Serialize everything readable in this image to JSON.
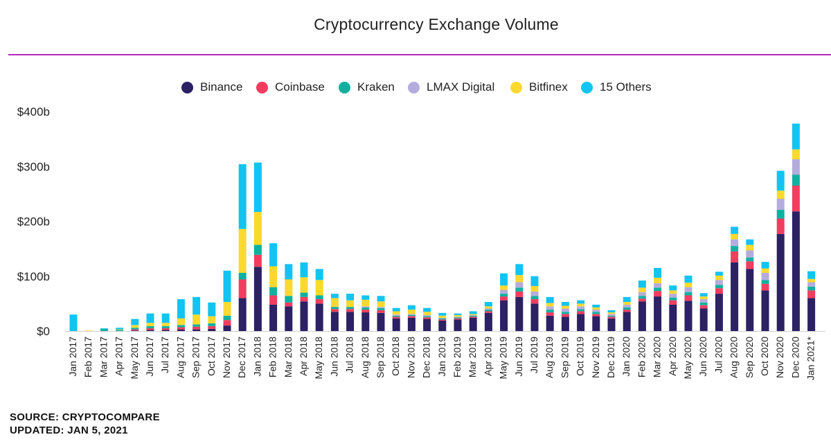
{
  "chart_data": {
    "type": "bar",
    "stacked": true,
    "title": "Cryptocurrency Exchange Volume",
    "ylim": [
      0,
      400
    ],
    "yticks": [
      "$0",
      "$100b",
      "$200b",
      "$300b",
      "$400b"
    ],
    "ytick_values": [
      0,
      100,
      200,
      300,
      400
    ],
    "grid": false,
    "legend_position": "top",
    "categories": [
      "Jan 2017",
      "Feb 2017",
      "Mar 2017",
      "Apr 2017",
      "May 2017",
      "Jun 2017",
      "Jul 2017",
      "Aug 2017",
      "Sep 2017",
      "Oct 2017",
      "Nov 2017",
      "Dec 2017",
      "Jan 2018",
      "Feb 2018",
      "Mar 2018",
      "Apr 2018",
      "May 2018",
      "Jun 2018",
      "Jul 2018",
      "Aug 2018",
      "Sep 2018",
      "Oct 2018",
      "Nov 2018",
      "Dec 2018",
      "Jan 2019",
      "Feb 2019",
      "Mar 2019",
      "Apr 2019",
      "May 2019",
      "Jun 2019",
      "Jul 2019",
      "Aug 2019",
      "Sep 2019",
      "Oct 2019",
      "Nov 2019",
      "Dec 2019",
      "Jan 2020",
      "Feb 2020",
      "Mar 2020",
      "Apr 2020",
      "May 2020",
      "Jun 2020",
      "Jul 2020",
      "Aug 2020",
      "Sep 2020",
      "Oct 2020",
      "Nov 2020",
      "Dec 2020",
      "Jan 2021*"
    ],
    "series": [
      {
        "name": "Binance",
        "color": "#2b2163",
        "values": [
          0,
          0,
          0,
          0,
          1,
          2,
          2,
          3,
          3,
          4,
          10,
          60,
          117,
          48,
          45,
          54,
          50,
          35,
          35,
          34,
          33,
          23,
          24,
          22,
          19,
          21,
          24,
          33,
          56,
          62,
          50,
          28,
          26,
          31,
          27,
          23,
          35,
          54,
          63,
          48,
          55,
          41,
          68,
          125,
          113,
          74,
          177,
          218,
          60
        ]
      },
      {
        "name": "Coinbase",
        "color": "#f23d5f",
        "values": [
          0,
          0,
          0,
          0,
          2,
          3,
          3,
          4,
          5,
          5,
          10,
          34,
          22,
          17,
          7,
          8,
          8,
          5,
          5,
          5,
          5,
          3,
          3,
          3,
          2,
          2,
          2,
          3,
          7,
          10,
          8,
          6,
          5,
          5,
          4,
          3,
          4,
          5,
          10,
          8,
          10,
          6,
          10,
          20,
          14,
          12,
          28,
          47,
          14
        ]
      },
      {
        "name": "Kraken",
        "color": "#10b0a0",
        "values": [
          0,
          0,
          4,
          2,
          3,
          4,
          4,
          4,
          4,
          5,
          8,
          12,
          18,
          15,
          12,
          8,
          7,
          4,
          4,
          4,
          4,
          2,
          2,
          2,
          2,
          2,
          2,
          3,
          5,
          7,
          6,
          5,
          4,
          4,
          4,
          2,
          4,
          5,
          6,
          5,
          6,
          5,
          6,
          10,
          7,
          7,
          16,
          20,
          7
        ]
      },
      {
        "name": "LMAX Digital",
        "color": "#b4acdd",
        "values": [
          0,
          0,
          0,
          0,
          0,
          0,
          0,
          0,
          0,
          0,
          0,
          0,
          0,
          0,
          0,
          0,
          0,
          0,
          0,
          2,
          2,
          2,
          2,
          2,
          1,
          1,
          1,
          2,
          7,
          10,
          8,
          6,
          6,
          5,
          4,
          3,
          5,
          7,
          8,
          7,
          9,
          6,
          9,
          12,
          13,
          13,
          20,
          28,
          8
        ]
      },
      {
        "name": "Bitfinex",
        "color": "#fbd92e",
        "values": [
          0,
          1,
          0,
          1,
          5,
          6,
          6,
          12,
          18,
          13,
          25,
          80,
          60,
          38,
          30,
          28,
          28,
          16,
          12,
          12,
          10,
          6,
          8,
          6,
          4,
          3,
          2,
          4,
          8,
          13,
          10,
          6,
          5,
          5,
          4,
          3,
          5,
          8,
          10,
          6,
          8,
          5,
          8,
          10,
          10,
          8,
          15,
          18,
          6
        ]
      },
      {
        "name": "15 Others",
        "color": "#12c4f2",
        "values": [
          30,
          0,
          1,
          3,
          11,
          17,
          17,
          35,
          32,
          25,
          57,
          118,
          90,
          42,
          28,
          27,
          20,
          8,
          12,
          8,
          10,
          6,
          8,
          7,
          5,
          3,
          5,
          8,
          22,
          20,
          18,
          11,
          7,
          6,
          5,
          4,
          9,
          13,
          18,
          9,
          13,
          6,
          7,
          13,
          10,
          12,
          36,
          47,
          14
        ]
      }
    ]
  },
  "footer": {
    "source": "SOURCE: CRYPTOCOMPARE",
    "updated": "UPDATED: JAN 5, 2021"
  }
}
